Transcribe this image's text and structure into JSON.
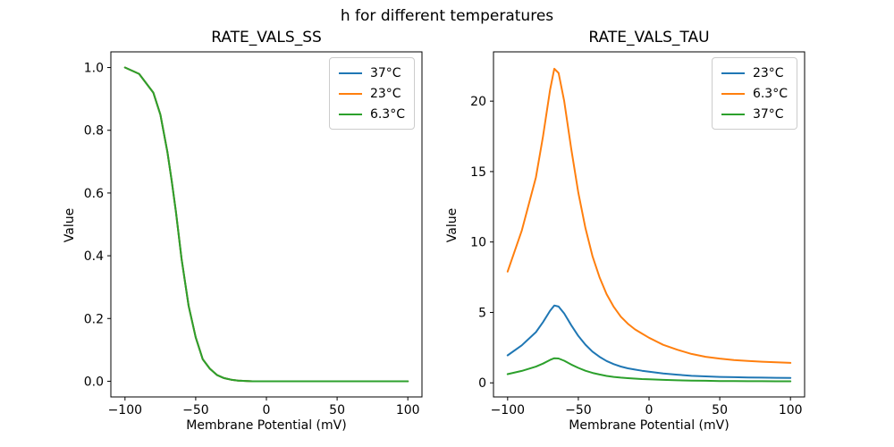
{
  "figure": {
    "suptitle": "h for different temperatures",
    "background": "#ffffff",
    "text_color": "#000000",
    "spine_color": "#000000",
    "legend_border_color": "#cccccc"
  },
  "chart_data": [
    {
      "type": "line",
      "title": "RATE_VALS_SS",
      "xlabel": "Membrane Potential (mV)",
      "ylabel": "Value",
      "xlim": [
        -110,
        110
      ],
      "ylim": [
        -0.05,
        1.05
      ],
      "xticks": [
        -100,
        -50,
        0,
        50,
        100
      ],
      "xtick_labels": [
        "−100",
        "−50",
        "0",
        "50",
        "100"
      ],
      "yticks": [
        0.0,
        0.2,
        0.4,
        0.6,
        0.8,
        1.0
      ],
      "ytick_labels": [
        "0.0",
        "0.2",
        "0.4",
        "0.6",
        "0.8",
        "1.0"
      ],
      "grid": false,
      "legend_position": "upper right",
      "note": "All three temperature curves coincide exactly; the last-drawn green 6.3°C curve is visible on top.",
      "x": [
        -100,
        -90,
        -80,
        -75,
        -70,
        -67,
        -64,
        -60,
        -55,
        -50,
        -45,
        -40,
        -35,
        -30,
        -25,
        -20,
        -15,
        -10,
        -5,
        0,
        10,
        20,
        30,
        40,
        50,
        60,
        70,
        80,
        90,
        100
      ],
      "series": [
        {
          "name": "37°C",
          "color": "#1f77b4",
          "values": [
            1.0,
            0.98,
            0.92,
            0.85,
            0.73,
            0.64,
            0.54,
            0.39,
            0.24,
            0.14,
            0.07,
            0.04,
            0.02,
            0.01,
            0.005,
            0.002,
            0.001,
            0.0,
            0.0,
            0.0,
            0.0,
            0.0,
            0.0,
            0.0,
            0.0,
            0.0,
            0.0,
            0.0,
            0.0,
            0.0
          ]
        },
        {
          "name": "23°C",
          "color": "#ff7f0e",
          "values": [
            1.0,
            0.98,
            0.92,
            0.85,
            0.73,
            0.64,
            0.54,
            0.39,
            0.24,
            0.14,
            0.07,
            0.04,
            0.02,
            0.01,
            0.005,
            0.002,
            0.001,
            0.0,
            0.0,
            0.0,
            0.0,
            0.0,
            0.0,
            0.0,
            0.0,
            0.0,
            0.0,
            0.0,
            0.0,
            0.0
          ]
        },
        {
          "name": "6.3°C",
          "color": "#2ca02c",
          "values": [
            1.0,
            0.98,
            0.92,
            0.85,
            0.73,
            0.64,
            0.54,
            0.39,
            0.24,
            0.14,
            0.07,
            0.04,
            0.02,
            0.01,
            0.005,
            0.002,
            0.001,
            0.0,
            0.0,
            0.0,
            0.0,
            0.0,
            0.0,
            0.0,
            0.0,
            0.0,
            0.0,
            0.0,
            0.0,
            0.0
          ]
        }
      ]
    },
    {
      "type": "line",
      "title": "RATE_VALS_TAU",
      "xlabel": "Membrane Potential (mV)",
      "ylabel": "Value",
      "xlim": [
        -110,
        110
      ],
      "ylim": [
        -1.0,
        23.5
      ],
      "xticks": [
        -100,
        -50,
        0,
        50,
        100
      ],
      "xtick_labels": [
        "−100",
        "−50",
        "0",
        "50",
        "100"
      ],
      "yticks": [
        0,
        5,
        10,
        15,
        20
      ],
      "ytick_labels": [
        "0",
        "5",
        "10",
        "15",
        "20"
      ],
      "grid": false,
      "legend_position": "upper right",
      "note": "Bell-shaped tau curves peaking near −66 mV; peak values ≈ 22.3 (6.3°C), 5.5 (23°C), 1.75 (37°C).",
      "x": [
        -100,
        -90,
        -80,
        -75,
        -70,
        -67,
        -64,
        -60,
        -55,
        -50,
        -45,
        -40,
        -35,
        -30,
        -25,
        -20,
        -15,
        -10,
        -5,
        0,
        10,
        20,
        30,
        40,
        50,
        60,
        70,
        80,
        90,
        100
      ],
      "series": [
        {
          "name": "23°C",
          "color": "#1f77b4",
          "values": [
            1.95,
            2.66,
            3.6,
            4.31,
            5.12,
            5.49,
            5.42,
            4.93,
            4.09,
            3.33,
            2.71,
            2.22,
            1.85,
            1.55,
            1.33,
            1.16,
            1.03,
            0.94,
            0.86,
            0.79,
            0.67,
            0.58,
            0.5,
            0.46,
            0.42,
            0.4,
            0.38,
            0.37,
            0.36,
            0.35
          ]
        },
        {
          "name": "6.3°C",
          "color": "#ff7f0e",
          "values": [
            7.9,
            10.8,
            14.6,
            17.5,
            20.8,
            22.3,
            22.0,
            20.0,
            16.6,
            13.5,
            11.0,
            9.0,
            7.5,
            6.3,
            5.4,
            4.7,
            4.2,
            3.8,
            3.5,
            3.2,
            2.7,
            2.35,
            2.05,
            1.85,
            1.72,
            1.62,
            1.55,
            1.5,
            1.46,
            1.42
          ]
        },
        {
          "name": "37°C",
          "color": "#2ca02c",
          "values": [
            0.62,
            0.85,
            1.15,
            1.37,
            1.63,
            1.75,
            1.73,
            1.57,
            1.3,
            1.06,
            0.86,
            0.71,
            0.59,
            0.49,
            0.42,
            0.37,
            0.33,
            0.3,
            0.27,
            0.25,
            0.21,
            0.18,
            0.16,
            0.15,
            0.13,
            0.13,
            0.12,
            0.12,
            0.11,
            0.11
          ]
        }
      ]
    }
  ]
}
